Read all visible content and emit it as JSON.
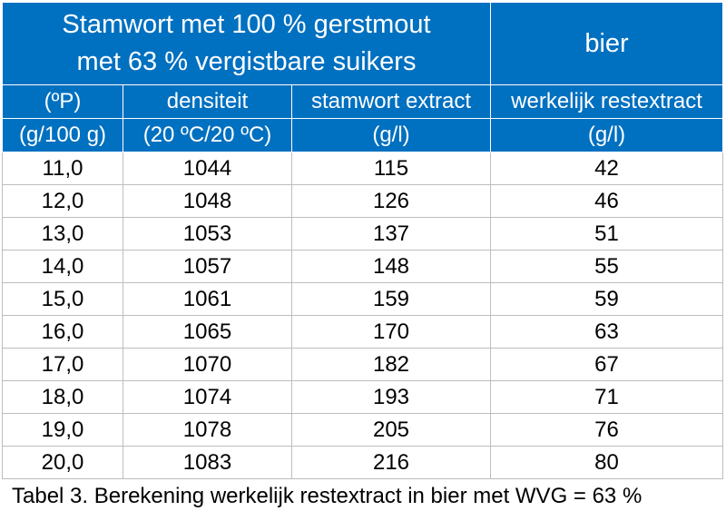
{
  "header": {
    "title_line1": "Stamwort met 100 % gerstmout",
    "title_line2": "met 63 % vergistbare suikers",
    "bier_label": "bier",
    "units": [
      "(ºP)",
      "densiteit",
      "stamwort extract",
      "werkelijk restextract"
    ],
    "units2": [
      "(g/100 g)",
      "(20 ºC/20 ºC)",
      "(g/l)",
      "(g/l)"
    ]
  },
  "rows": [
    [
      "11,0",
      "1044",
      "115",
      "42"
    ],
    [
      "12,0",
      "1048",
      "126",
      "46"
    ],
    [
      "13,0",
      "1053",
      "137",
      "51"
    ],
    [
      "14,0",
      "1057",
      "148",
      "55"
    ],
    [
      "15,0",
      "1061",
      "159",
      "59"
    ],
    [
      "16,0",
      "1065",
      "170",
      "63"
    ],
    [
      "17,0",
      "1070",
      "182",
      "67"
    ],
    [
      "18,0",
      "1074",
      "193",
      "71"
    ],
    [
      "19,0",
      "1078",
      "205",
      "76"
    ],
    [
      "20,0",
      "1083",
      "216",
      "80"
    ]
  ],
  "caption": "Tabel 3. Berekening werkelijk restextract in bier met WVG = 63 %",
  "colors": {
    "header_bg": "#0070c0",
    "header_text": "#ffffff",
    "grid": "#bdbdbd"
  }
}
